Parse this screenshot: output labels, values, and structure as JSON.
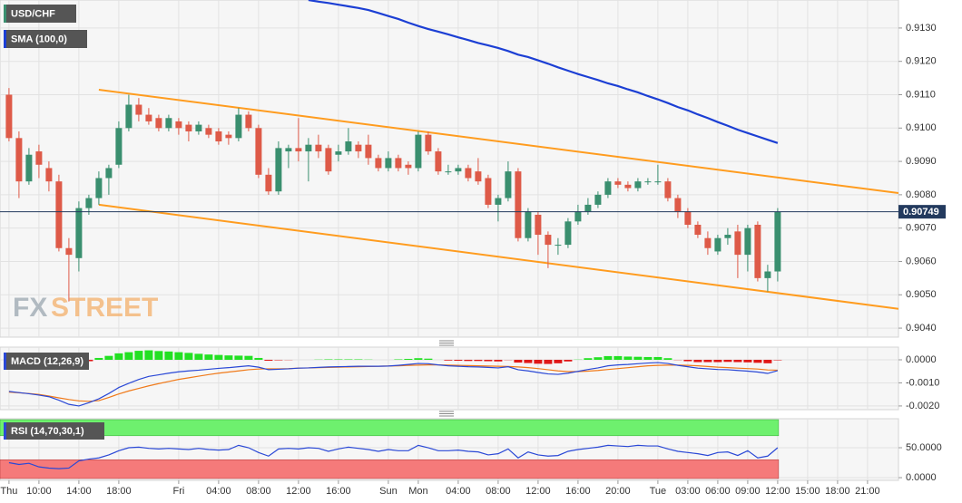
{
  "chart_data": [
    {
      "type": "candlestick",
      "name": "USD/CHF",
      "up_color": "#3a8f6f",
      "down_color": "#de5a48",
      "open": [
        0.911,
        0.9097,
        0.9084,
        0.9093,
        0.9088,
        0.9084,
        0.9064,
        0.9061,
        0.9076,
        0.9079,
        0.9085,
        0.9089,
        0.91,
        0.9107,
        0.9104,
        0.9103,
        0.91,
        0.9102,
        0.9101,
        0.9099,
        0.91,
        0.9099,
        0.9098,
        0.9097,
        0.9104,
        0.91,
        0.9086,
        0.9081,
        0.9093,
        0.9094,
        0.9093,
        0.9095,
        0.9094,
        0.9092,
        0.9093,
        0.9095,
        0.9095,
        0.9091,
        0.9088,
        0.9091,
        0.9089,
        0.9088,
        0.9098,
        0.9093,
        0.9087,
        0.9087,
        0.9088,
        0.9087,
        0.9085,
        0.9077,
        0.9079,
        0.9087,
        0.9067,
        0.9074,
        0.9068,
        0.9065,
        0.9065,
        0.9072,
        0.9075,
        0.9077,
        0.908,
        0.9084,
        0.9083,
        0.9082,
        0.9084,
        0.9084,
        0.9084,
        0.9079,
        0.9075,
        0.9071,
        0.9067,
        0.9063,
        0.9067,
        0.9069,
        0.9062,
        0.9071,
        0.9055,
        0.9057
      ],
      "high": [
        0.9112,
        0.9099,
        0.9094,
        0.9095,
        0.909,
        0.9086,
        0.9067,
        0.9078,
        0.908,
        0.9087,
        0.9089,
        0.9102,
        0.911,
        0.9109,
        0.9106,
        0.9104,
        0.9104,
        0.9103,
        0.9102,
        0.9102,
        0.9101,
        0.91,
        0.9099,
        0.9106,
        0.9105,
        0.9101,
        0.9088,
        0.9096,
        0.9095,
        0.9103,
        0.9097,
        0.9098,
        0.9095,
        0.9095,
        0.91,
        0.9096,
        0.9098,
        0.9092,
        0.9093,
        0.9092,
        0.909,
        0.9099,
        0.9099,
        0.9094,
        0.9089,
        0.9089,
        0.9089,
        0.9091,
        0.9086,
        0.908,
        0.909,
        0.9088,
        0.9076,
        0.9075,
        0.9069,
        0.9067,
        0.9073,
        0.9077,
        0.9079,
        0.9081,
        0.9085,
        0.9085,
        0.9084,
        0.9085,
        0.9085,
        0.9089,
        0.9085,
        0.908,
        0.9076,
        0.9072,
        0.9069,
        0.9068,
        0.907,
        0.9071,
        0.9071,
        0.9072,
        0.9059,
        0.9076
      ],
      "low": [
        0.9096,
        0.9079,
        0.9083,
        0.9085,
        0.9081,
        0.9063,
        0.9048,
        0.9057,
        0.9074,
        0.9077,
        0.908,
        0.9088,
        0.9099,
        0.9102,
        0.9101,
        0.9099,
        0.9099,
        0.9098,
        0.9096,
        0.9098,
        0.9097,
        0.9095,
        0.9095,
        0.9096,
        0.9099,
        0.9085,
        0.908,
        0.908,
        0.9088,
        0.909,
        0.9084,
        0.9091,
        0.9086,
        0.909,
        0.9092,
        0.9091,
        0.9089,
        0.9087,
        0.9087,
        0.9087,
        0.9086,
        0.9087,
        0.9092,
        0.9086,
        0.9086,
        0.9086,
        0.9084,
        0.9083,
        0.9076,
        0.9072,
        0.9078,
        0.9066,
        0.9066,
        0.9062,
        0.9058,
        0.9062,
        0.9064,
        0.9071,
        0.9074,
        0.9076,
        0.9079,
        0.9082,
        0.9081,
        0.9081,
        0.9083,
        0.9083,
        0.9078,
        0.9073,
        0.907,
        0.9067,
        0.9062,
        0.9062,
        0.9065,
        0.9055,
        0.9057,
        0.9054,
        0.9051,
        0.9054
      ],
      "close": [
        0.9097,
        0.9084,
        0.9092,
        0.9089,
        0.9084,
        0.9064,
        0.9062,
        0.9076,
        0.9079,
        0.9085,
        0.9088,
        0.91,
        0.9107,
        0.9104,
        0.9102,
        0.91,
        0.9103,
        0.91,
        0.9099,
        0.9101,
        0.9098,
        0.9096,
        0.9097,
        0.9104,
        0.91,
        0.9086,
        0.9081,
        0.9094,
        0.9094,
        0.9093,
        0.9095,
        0.9093,
        0.9087,
        0.9093,
        0.9096,
        0.9093,
        0.9091,
        0.9088,
        0.9091,
        0.9088,
        0.9088,
        0.9098,
        0.9093,
        0.9087,
        0.9087,
        0.9088,
        0.9085,
        0.9084,
        0.9077,
        0.9079,
        0.9087,
        0.9067,
        0.9075,
        0.9068,
        0.9065,
        0.9065,
        0.9072,
        0.9075,
        0.9077,
        0.908,
        0.9084,
        0.9083,
        0.9082,
        0.9084,
        0.9084,
        0.9084,
        0.9079,
        0.9075,
        0.9071,
        0.9068,
        0.9064,
        0.9067,
        0.9068,
        0.9062,
        0.907,
        0.9055,
        0.9057,
        0.90749
      ],
      "last_price_color": "#233a5e",
      "overlays": [
        {
          "name": "SMA (100,0)",
          "color": "#1c3fd4",
          "values": [
            null,
            null,
            null,
            null,
            null,
            null,
            null,
            null,
            null,
            null,
            null,
            null,
            null,
            null,
            null,
            null,
            null,
            null,
            null,
            null,
            null,
            null,
            null,
            null,
            null,
            null,
            null,
            null,
            null,
            null,
            0.91384,
            0.91379,
            0.91375,
            0.9137,
            0.91365,
            0.9136,
            0.91354,
            0.91345,
            0.91336,
            0.91327,
            0.91316,
            0.91306,
            0.91297,
            0.91289,
            0.91281,
            0.91272,
            0.91264,
            0.91255,
            0.91248,
            0.9124,
            0.91231,
            0.9122,
            0.91213,
            0.91203,
            0.91193,
            0.91182,
            0.91172,
            0.91162,
            0.91153,
            0.91144,
            0.91134,
            0.91126,
            0.91116,
            0.91107,
            0.91096,
            0.91086,
            0.91075,
            0.91063,
            0.91053,
            0.91041,
            0.9103,
            0.91018,
            0.91007,
            0.90995,
            0.90985,
            0.90975,
            0.90965,
            0.90955
          ]
        }
      ],
      "trendlines": [
        {
          "color": "#ff9c1f",
          "x": [
            9,
            89.1
          ],
          "y": [
            0.91115,
            0.90805
          ]
        },
        {
          "color": "#ff9c1f",
          "x": [
            9,
            89.1
          ],
          "y": [
            0.9077,
            0.90458
          ]
        }
      ],
      "watermark": [
        "FX",
        "STREET"
      ],
      "xlim": [
        -0.9,
        89.1
      ],
      "xticks": [
        {
          "value": 0,
          "label": "Thu"
        },
        {
          "value": 3,
          "label": "10:00"
        },
        {
          "value": 7,
          "label": "14:00"
        },
        {
          "value": 11,
          "label": "18:00"
        },
        {
          "value": 17,
          "label": "Fri"
        },
        {
          "value": 21,
          "label": "04:00"
        },
        {
          "value": 25,
          "label": "08:00"
        },
        {
          "value": 29,
          "label": "12:00"
        },
        {
          "value": 33,
          "label": "16:00"
        },
        {
          "value": 38,
          "label": "Sun"
        },
        {
          "value": 41,
          "label": "Mon"
        },
        {
          "value": 45,
          "label": "04:00"
        },
        {
          "value": 49,
          "label": "08:00"
        },
        {
          "value": 53,
          "label": "12:00"
        },
        {
          "value": 57,
          "label": "16:00"
        },
        {
          "value": 61,
          "label": "20:00"
        },
        {
          "value": 65,
          "label": "Tue"
        },
        {
          "value": 68,
          "label": "03:00"
        },
        {
          "value": 71,
          "label": "06:00"
        },
        {
          "value": 74,
          "label": "09:00"
        },
        {
          "value": 77,
          "label": "12:00"
        },
        {
          "value": 80,
          "label": "15:00"
        },
        {
          "value": 83,
          "label": "18:00"
        },
        {
          "value": 86,
          "label": "21:00"
        }
      ],
      "ylim": [
        0.90373,
        0.91384
      ],
      "yticks": [
        {
          "value": 0.913,
          "label": "0.9130"
        },
        {
          "value": 0.912,
          "label": "0.9120"
        },
        {
          "value": 0.911,
          "label": "0.9110"
        },
        {
          "value": 0.91,
          "label": "0.9100"
        },
        {
          "value": 0.909,
          "label": "0.9090"
        },
        {
          "value": 0.908,
          "label": "0.9080"
        },
        {
          "value": 0.907,
          "label": "0.9070"
        },
        {
          "value": 0.906,
          "label": "0.9060"
        },
        {
          "value": 0.905,
          "label": "0.9050"
        },
        {
          "value": 0.904,
          "label": "0.9040"
        }
      ],
      "grid": true
    },
    {
      "type": "macd",
      "title": "MACD (12,26,9)",
      "macd_color": "#2a48d6",
      "signal_color": "#f07a1a",
      "up_color": "#22e022",
      "down_color": "#e01818",
      "macd": [
        -0.00137,
        -0.00142,
        -0.00147,
        -0.00153,
        -0.0016,
        -0.00175,
        -0.00193,
        -0.002,
        -0.00186,
        -0.00169,
        -0.00146,
        -0.0012,
        -0.00102,
        -0.00085,
        -0.00072,
        -0.00065,
        -0.00058,
        -0.00052,
        -0.00048,
        -0.00045,
        -0.00041,
        -0.00037,
        -0.00034,
        -0.0003,
        -0.00026,
        -0.00032,
        -0.00043,
        -0.00041,
        -0.00039,
        -0.00036,
        -0.00035,
        -0.00033,
        -0.00031,
        -0.0003,
        -0.00029,
        -0.00028,
        -0.00028,
        -0.00028,
        -0.00027,
        -0.00024,
        -0.0002,
        -0.00016,
        -0.00017,
        -0.00022,
        -0.00026,
        -0.00028,
        -0.0003,
        -0.00031,
        -0.00033,
        -0.00035,
        -0.0003,
        -0.00043,
        -0.00048,
        -0.00055,
        -0.00061,
        -0.00063,
        -0.00058,
        -0.0005,
        -0.00042,
        -0.00035,
        -0.00026,
        -0.00022,
        -0.0002,
        -0.00017,
        -0.00014,
        -0.00012,
        -0.00016,
        -0.00024,
        -0.0003,
        -0.00036,
        -0.00039,
        -0.00042,
        -0.00043,
        -0.00046,
        -0.00049,
        -0.00053,
        -0.00059,
        -0.00047
      ],
      "signal": [
        -0.0014,
        -0.00143,
        -0.00146,
        -0.0015,
        -0.00157,
        -0.00165,
        -0.00172,
        -0.00178,
        -0.0018,
        -0.00177,
        -0.00163,
        -0.00148,
        -0.00135,
        -0.00124,
        -0.00113,
        -0.00103,
        -0.00094,
        -0.00085,
        -0.00078,
        -0.00071,
        -0.00064,
        -0.00058,
        -0.00053,
        -0.00048,
        -0.00043,
        -0.0004,
        -0.00039,
        -0.00039,
        -0.00038,
        -0.00036,
        -0.00035,
        -0.00034,
        -0.00033,
        -0.00032,
        -0.00031,
        -0.0003,
        -0.00029,
        -0.00028,
        -0.00027,
        -0.00026,
        -0.00024,
        -0.00023,
        -0.00022,
        -0.00022,
        -0.00023,
        -0.00024,
        -0.00025,
        -0.00026,
        -0.00027,
        -0.00028,
        -0.00029,
        -0.00031,
        -0.00034,
        -0.00038,
        -0.00043,
        -0.00048,
        -0.00051,
        -0.00051,
        -0.00049,
        -0.00046,
        -0.00042,
        -0.00038,
        -0.00034,
        -0.0003,
        -0.00026,
        -0.00024,
        -0.00023,
        -0.00023,
        -0.00024,
        -0.00026,
        -0.00029,
        -0.00032,
        -0.00034,
        -0.00036,
        -0.00038,
        -0.0004,
        -0.00044,
        -0.00045
      ],
      "histogram": [
        3e-05,
        1e-05,
        -1e-05,
        -3e-05,
        -3e-05,
        -0.0001,
        -0.00021,
        -0.00022,
        -6e-05,
        8e-05,
        0.00017,
        0.00028,
        0.00033,
        0.00039,
        0.00041,
        0.00038,
        0.00036,
        0.00033,
        0.0003,
        0.00026,
        0.00023,
        0.00021,
        0.00019,
        0.00018,
        0.00017,
        8e-05,
        -4e-05,
        -2e-05,
        -1e-05,
        0,
        0,
        1e-05,
        2e-05,
        2e-05,
        2e-05,
        2e-05,
        1e-05,
        0,
        0,
        2e-05,
        4e-05,
        7e-05,
        5e-05,
        0,
        -3e-05,
        -4e-05,
        -5e-05,
        -5e-05,
        -6e-05,
        -7e-05,
        -1e-05,
        -0.00012,
        -0.00014,
        -0.00017,
        -0.00018,
        -0.00015,
        -7e-05,
        1e-05,
        7e-05,
        0.00011,
        0.00016,
        0.00016,
        0.00014,
        0.00013,
        0.00012,
        0.00012,
        7e-05,
        -1e-05,
        -6e-05,
        -0.0001,
        -0.0001,
        -0.0001,
        -9e-05,
        -0.0001,
        -0.00011,
        -0.00013,
        -0.00015,
        -2e-05
      ],
      "ylim": [
        -0.00216,
        0.00055
      ],
      "yticks": [
        {
          "value": 0,
          "label": "0.0000"
        },
        {
          "value": -0.001,
          "label": "-0.0010"
        },
        {
          "value": -0.002,
          "label": "-0.0020"
        }
      ],
      "grid": true
    },
    {
      "type": "rsi",
      "title": "RSI (14,70,30,1)",
      "color": "#2a48d6",
      "overbought": 70,
      "oversold": 30,
      "overbought_color": "#6ef06e",
      "oversold_color": "#f57a7a",
      "values": [
        25,
        22,
        24,
        18,
        16,
        15,
        16,
        28,
        31,
        33,
        38,
        45,
        50,
        51,
        49,
        48,
        49,
        48,
        47,
        49,
        47,
        46,
        47,
        54,
        50,
        42,
        36,
        48,
        49,
        48,
        50,
        49,
        44,
        48,
        51,
        49,
        47,
        44,
        47,
        45,
        45,
        54,
        50,
        45,
        45,
        46,
        44,
        43,
        38,
        40,
        48,
        33,
        43,
        38,
        36,
        37,
        44,
        47,
        49,
        51,
        54,
        53,
        52,
        54,
        53,
        53,
        48,
        44,
        42,
        40,
        37,
        42,
        43,
        37,
        45,
        33,
        36,
        50
      ],
      "ylim": [
        -4.5,
        98.5
      ],
      "yticks": [
        {
          "value": 50,
          "label": "50.0000"
        },
        {
          "value": 0,
          "label": "0.0000"
        }
      ],
      "grid": true
    }
  ]
}
